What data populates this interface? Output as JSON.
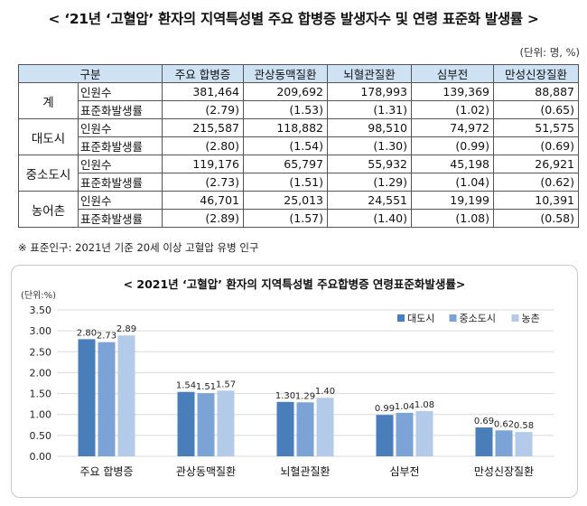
{
  "header": {
    "title": "< ‘21년 ‘고혈압’ 환자의 지역특성별 주요 합병증 발생자수 및 연령 표준화 발생률 >",
    "unit": "(단위: 명, %)"
  },
  "table": {
    "group_header": "구분",
    "columns": [
      "주요 합병증",
      "관상동맥질환",
      "뇌혈관질환",
      "심부전",
      "만성신장질환"
    ],
    "rows": [
      {
        "region": "계",
        "count_label": "인원수",
        "counts": [
          "381,464",
          "209,692",
          "178,993",
          "139,369",
          "88,887"
        ],
        "rate_label": "표준화발생률",
        "rates": [
          "(2.79)",
          "(1.53)",
          "(1.31)",
          "(1.02)",
          "(0.65)"
        ]
      },
      {
        "region": "대도시",
        "count_label": "인원수",
        "counts": [
          "215,587",
          "118,882",
          "98,510",
          "74,972",
          "51,575"
        ],
        "rate_label": "표준화발생률",
        "rates": [
          "(2.80)",
          "(1.54)",
          "(1.30)",
          "(0.99)",
          "(0.69)"
        ]
      },
      {
        "region": "중소도시",
        "count_label": "인원수",
        "counts": [
          "119,176",
          "65,797",
          "55,932",
          "45,198",
          "26,921"
        ],
        "rate_label": "표준화발생률",
        "rates": [
          "(2.73)",
          "(1.51)",
          "(1.29)",
          "(1.04)",
          "(0.62)"
        ]
      },
      {
        "region": "농어촌",
        "count_label": "인원수",
        "counts": [
          "46,701",
          "25,013",
          "24,551",
          "19,199",
          "10,391"
        ],
        "rate_label": "표준화발생률",
        "rates": [
          "(2.89)",
          "(1.57)",
          "(1.40)",
          "(1.08)",
          "(0.58)"
        ]
      }
    ]
  },
  "note": "※ 표준인구: 2021년 기준 20세 이상 고혈압 유병 인구",
  "chart_data": {
    "type": "bar",
    "title": "< 2021년 ‘고혈압’ 환자의 지역특성별 주요합병증 연령표준화발생률>",
    "ylabel": "(단위:%)",
    "categories": [
      "주요 합병증",
      "관상동맥질환",
      "뇌혈관질환",
      "심부전",
      "만성신장질환"
    ],
    "ylim": [
      0,
      3.5
    ],
    "yticks": [
      "0.00",
      "0.50",
      "1.00",
      "1.50",
      "2.00",
      "2.50",
      "3.00",
      "3.50"
    ],
    "grid": true,
    "legend_position": "top-right",
    "series": [
      {
        "name": "대도시",
        "color": "#4a7ebb",
        "values": [
          2.8,
          1.54,
          1.3,
          0.99,
          0.69
        ],
        "labels": [
          "2.80",
          "1.54",
          "1.30",
          "0.99",
          "0.69"
        ]
      },
      {
        "name": "중소도시",
        "color": "#7ba3d6",
        "values": [
          2.73,
          1.51,
          1.29,
          1.04,
          0.62
        ],
        "labels": [
          "2.73",
          "1.51",
          "1.29",
          "1.04",
          "0.62"
        ]
      },
      {
        "name": "농촌",
        "color": "#b3cbe8",
        "values": [
          2.89,
          1.57,
          1.4,
          1.08,
          0.58
        ],
        "labels": [
          "2.89",
          "1.57",
          "1.40",
          "1.08",
          "0.58"
        ]
      }
    ]
  }
}
